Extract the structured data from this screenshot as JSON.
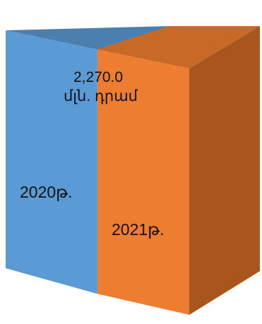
{
  "chart_data": {
    "type": "bar",
    "style": "3d-stacked-column",
    "categories": [
      "2020թ.",
      "2021թ."
    ],
    "series": [
      {
        "category": "2020թ.",
        "color": "#5b9bd5"
      },
      {
        "category": "2021թ.",
        "color": "#ed7d31"
      }
    ],
    "data_label": {
      "value": "2,270.0",
      "unit": "մլն. դրամ"
    },
    "title": "",
    "xlabel": "",
    "ylabel": "",
    "grid": false,
    "legend": "none"
  }
}
